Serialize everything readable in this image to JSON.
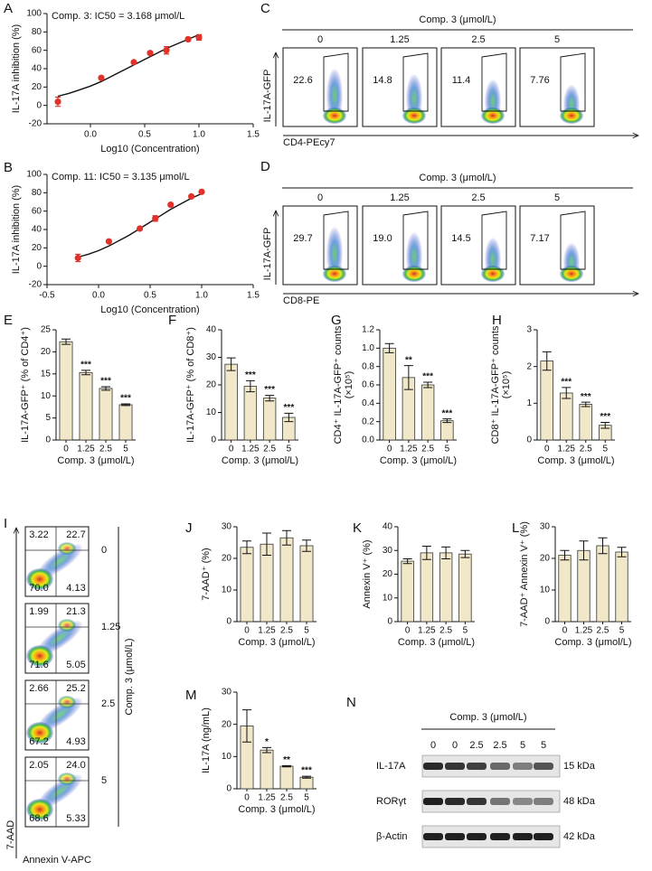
{
  "chart_data": [
    {
      "type": "scatter",
      "panel": "A",
      "title": "Comp. 3: IC50 = 3.168 μmol/L",
      "xlabel": "Log10 (Concentration)",
      "ylabel": "IL-17A inhibition (%)",
      "color": "#e0312a",
      "x": [
        -0.3,
        0.1,
        0.4,
        0.55,
        0.7,
        0.9,
        1.0
      ],
      "values": [
        4,
        30,
        47,
        57,
        60,
        72,
        74
      ],
      "errors": [
        5,
        1,
        1,
        1,
        4,
        2,
        3
      ],
      "fit": {
        "x": [
          -0.3,
          -0.2,
          -0.1,
          0,
          0.1,
          0.2,
          0.3,
          0.4,
          0.5,
          0.6,
          0.7,
          0.8,
          0.9,
          1.0
        ],
        "values": [
          10,
          13,
          17,
          21,
          26,
          32,
          38,
          44,
          50,
          56,
          62,
          67,
          72,
          77
        ]
      },
      "xlim": [
        -0.4,
        1.5
      ],
      "xticks": [
        {
          "value": 0,
          "label": "0.0"
        },
        0.5,
        {
          "value": 1,
          "label": "1.0"
        },
        1.5
      ],
      "ylim": [
        -20,
        100
      ],
      "yticks": [
        -20,
        0,
        20,
        40,
        60,
        80,
        100
      ]
    },
    {
      "type": "scatter",
      "panel": "B",
      "title": "Comp. 11: IC50 = 3.135 μmol/L",
      "xlabel": "Log10 (Concentration)",
      "ylabel": "IL-17A inhibition (%)",
      "color": "#e0312a",
      "x": [
        -0.2,
        0.1,
        0.4,
        0.55,
        0.7,
        0.9,
        1.0
      ],
      "values": [
        9,
        27,
        41,
        52,
        67,
        76,
        81
      ],
      "errors": [
        4,
        1,
        1,
        3,
        1,
        1,
        1
      ],
      "fit": {
        "x": [
          -0.2,
          -0.1,
          0,
          0.1,
          0.2,
          0.3,
          0.4,
          0.5,
          0.6,
          0.7,
          0.8,
          0.9,
          1.0
        ],
        "values": [
          10,
          13,
          17,
          22,
          28,
          34,
          41,
          48,
          55,
          62,
          68,
          74,
          79
        ]
      },
      "xlim": [
        -0.5,
        1.5
      ],
      "xticks": [
        -0.5,
        {
          "value": 0,
          "label": "0.0"
        },
        0.5,
        {
          "value": 1,
          "label": "1.0"
        },
        1.5
      ],
      "ylim": [
        -20,
        100
      ],
      "yticks": [
        -20,
        0,
        20,
        40,
        60,
        80,
        100
      ]
    },
    {
      "type": "bar",
      "panel": "E",
      "ylabel": [
        "IL-17A-GFP⁺ (% of CD4⁺)"
      ],
      "xlabel": "Comp. 3 (μmol/L)",
      "color": "#f0e8c8",
      "categories": [
        "0",
        "1.25",
        "2.5",
        "5"
      ],
      "values": [
        22.3,
        15.3,
        11.7,
        8.0
      ],
      "errors": [
        0.6,
        0.5,
        0.4,
        0.2
      ],
      "annotations": [
        null,
        "***",
        "***",
        "***"
      ],
      "ylim": [
        0,
        25
      ],
      "yticks": [
        0,
        5,
        10,
        15,
        20,
        25
      ]
    },
    {
      "type": "bar",
      "panel": "F",
      "ylabel": [
        "IL-17A-GFP⁺ (% of CD8⁺)"
      ],
      "xlabel": "Comp. 3 (μmol/L)",
      "color": "#f0e8c8",
      "categories": [
        "0",
        "1.25",
        "2.5",
        "5"
      ],
      "values": [
        27.5,
        19.5,
        15.2,
        8.2
      ],
      "errors": [
        2.3,
        2.0,
        1.0,
        1.5
      ],
      "annotations": [
        null,
        "***",
        "***",
        "***"
      ],
      "ylim": [
        0,
        40
      ],
      "yticks": [
        0,
        10,
        20,
        30,
        40
      ]
    },
    {
      "type": "bar",
      "panel": "G",
      "ylabel": [
        "CD4⁺ IL-17A-GFP⁺ counts",
        "(×10⁵)"
      ],
      "xlabel": "Comp. 3 (μmol/L)",
      "color": "#f0e8c8",
      "categories": [
        "0",
        "1.25",
        "2.5",
        "5"
      ],
      "values": [
        1.0,
        0.68,
        0.6,
        0.21
      ],
      "errors": [
        0.05,
        0.13,
        0.03,
        0.02
      ],
      "annotations": [
        null,
        "**",
        "***",
        "***"
      ],
      "ylim": [
        0,
        1.2
      ],
      "yticks": [
        {
          "value": 0,
          "label": "0.0"
        },
        0.2,
        0.4,
        0.6,
        0.8,
        {
          "value": 1,
          "label": "1.0"
        },
        1.2
      ]
    },
    {
      "type": "bar",
      "panel": "H",
      "ylabel": [
        "CD8⁺ IL-17A-GFP⁺ counts",
        "(×10⁵)"
      ],
      "xlabel": "Comp. 3 (μmol/L)",
      "color": "#f0e8c8",
      "categories": [
        "0",
        "1.25",
        "2.5",
        "5"
      ],
      "values": [
        2.15,
        1.28,
        0.97,
        0.4
      ],
      "errors": [
        0.25,
        0.15,
        0.06,
        0.08
      ],
      "annotations": [
        null,
        "***",
        "***",
        "***"
      ],
      "ylim": [
        0,
        3
      ],
      "yticks": [
        0,
        1,
        2,
        3
      ]
    },
    {
      "type": "bar",
      "panel": "J",
      "ylabel": [
        "7-AAD⁺ (%)"
      ],
      "xlabel": "Comp. 3 (μmol/L)",
      "color": "#f0e8c8",
      "categories": [
        "0",
        "1.25",
        "2.5",
        "5"
      ],
      "values": [
        23.5,
        24.5,
        26.5,
        24
      ],
      "errors": [
        2,
        3.5,
        2.3,
        1.8
      ],
      "annotations": [
        null,
        null,
        null,
        null
      ],
      "ylim": [
        0,
        30
      ],
      "yticks": [
        0,
        10,
        20,
        30
      ]
    },
    {
      "type": "bar",
      "panel": "K",
      "ylabel": [
        "Annexin V⁺ (%)"
      ],
      "xlabel": "Comp. 3 (μmol/L)",
      "color": "#f0e8c8",
      "categories": [
        "0",
        "1.25",
        "2.5",
        "5"
      ],
      "values": [
        25.5,
        29,
        29,
        28.5
      ],
      "errors": [
        1,
        2.8,
        2.5,
        1.5
      ],
      "annotations": [
        null,
        null,
        null,
        null
      ],
      "ylim": [
        0,
        40
      ],
      "yticks": [
        0,
        10,
        20,
        30,
        40
      ]
    },
    {
      "type": "bar",
      "panel": "L",
      "ylabel": [
        "7-AAD⁺ Annexin V⁺ (%)"
      ],
      "xlabel": "Comp. 3 (μmol/L)",
      "color": "#f0e8c8",
      "categories": [
        "0",
        "1.25",
        "2.5",
        "5"
      ],
      "values": [
        21,
        22.5,
        24,
        22
      ],
      "errors": [
        1.5,
        3,
        2.5,
        1.5
      ],
      "annotations": [
        null,
        null,
        null,
        null
      ],
      "ylim": [
        0,
        30
      ],
      "yticks": [
        0,
        10,
        20,
        30
      ]
    },
    {
      "type": "bar",
      "panel": "M",
      "ylabel": [
        "IL-17A (ng/mL)"
      ],
      "xlabel": "Comp. 3 (μmol/L)",
      "color": "#f0e8c8",
      "categories": [
        "0",
        "1.25",
        "2.5",
        "5"
      ],
      "values": [
        19.5,
        12,
        7,
        3.6
      ],
      "errors": [
        5,
        0.8,
        0.2,
        0.3
      ],
      "annotations": [
        null,
        "*",
        "**",
        "***"
      ],
      "ylim": [
        0,
        30
      ],
      "yticks": [
        0,
        10,
        20,
        30
      ]
    }
  ],
  "flow_plots": [
    {
      "panel": "C",
      "header": "Comp. 3 (μmol/L)",
      "columns": [
        "0",
        "1.25",
        "2.5",
        "5"
      ],
      "gates": [
        "22.6",
        "14.8",
        "11.4",
        "7.76"
      ],
      "y_axis": "IL-17A-GFP",
      "x_axis": "CD4-PEcy7"
    },
    {
      "panel": "D",
      "header": "Comp. 3 (μmol/L)",
      "columns": [
        "0",
        "1.25",
        "2.5",
        "5"
      ],
      "gates": [
        "29.7",
        "19.0",
        "14.5",
        "7.17"
      ],
      "y_axis": "IL-17A-GFP",
      "x_axis": "CD8-PE"
    }
  ],
  "apoptosis_flow": {
    "panel": "I",
    "side_label": "Comp. 3 (μmol/L)",
    "y_axis": "7-AAD",
    "x_axis": "Annexin V-APC",
    "rows": [
      {
        "label": "0",
        "quadrants": [
          "3.22",
          "22.7",
          "70.0",
          "4.13"
        ]
      },
      {
        "label": "1.25",
        "quadrants": [
          "1.99",
          "21.3",
          "71.6",
          "5.05"
        ]
      },
      {
        "label": "2.5",
        "quadrants": [
          "2.66",
          "25.2",
          "67.2",
          "4.93"
        ]
      },
      {
        "label": "5",
        "quadrants": [
          "2.05",
          "24.0",
          "68.6",
          "5.33"
        ]
      }
    ]
  },
  "western_blot": {
    "panel": "N",
    "header": "Comp. 3 (μmol/L)",
    "lanes": [
      "0",
      "0",
      "2.5",
      "2.5",
      "5",
      "5"
    ],
    "rows": [
      {
        "label": "IL-17A",
        "size": "15 kDa"
      },
      {
        "label": "RORγt",
        "size": "48 kDa"
      },
      {
        "label": "β-Actin",
        "size": "42 kDa"
      }
    ]
  }
}
